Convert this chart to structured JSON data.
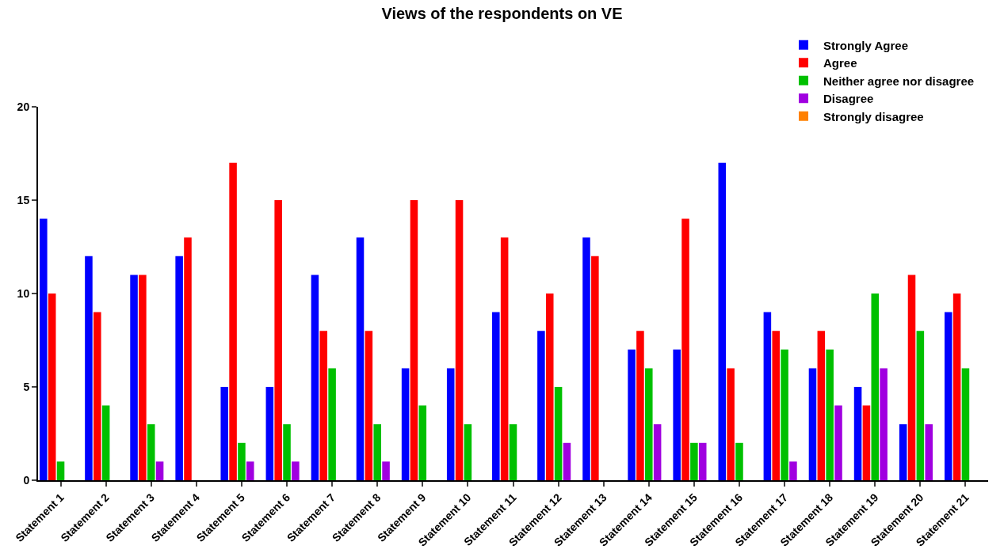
{
  "chart_data": {
    "type": "bar",
    "title": "Views of the respondents on VE",
    "categories": [
      "Statement 1",
      "Statement 2",
      "Statement 3",
      "Statement 4",
      "Statement 5",
      "Statement 6",
      "Statement 7",
      "Statement 8",
      "Statement 9",
      "Statement 10",
      "Statement 11",
      "Statement 12",
      "Statement 13",
      "Statement 14",
      "Statement 15",
      "Statement 16",
      "Statement 17",
      "Statement 18",
      "Statement 19",
      "Statement 20",
      "Statement 21"
    ],
    "series": [
      {
        "name": "Strongly Agree",
        "color": "#0000ff",
        "values": [
          14,
          12,
          11,
          12,
          5,
          5,
          11,
          13,
          6,
          6,
          9,
          8,
          13,
          7,
          7,
          17,
          9,
          6,
          5,
          3,
          9
        ]
      },
      {
        "name": "Agree",
        "color": "#ff0000",
        "values": [
          10,
          9,
          11,
          13,
          17,
          15,
          8,
          8,
          15,
          15,
          13,
          10,
          12,
          8,
          14,
          6,
          8,
          8,
          4,
          11,
          10
        ]
      },
      {
        "name": "Neither agree nor disagree",
        "color": "#00c000",
        "values": [
          1,
          4,
          3,
          0,
          2,
          3,
          6,
          3,
          4,
          3,
          3,
          5,
          0,
          6,
          2,
          2,
          7,
          7,
          10,
          8,
          6
        ]
      },
      {
        "name": "Disagree",
        "color": "#a000e0",
        "values": [
          0,
          0,
          1,
          0,
          1,
          1,
          0,
          1,
          0,
          0,
          0,
          2,
          0,
          3,
          2,
          0,
          1,
          4,
          6,
          3,
          0
        ]
      },
      {
        "name": "Strongly disagree",
        "color": "#ff8000",
        "values": [
          0,
          0,
          0,
          0,
          0,
          0,
          0,
          0,
          0,
          0,
          0,
          0,
          0,
          0,
          0,
          0,
          0,
          0,
          0,
          0,
          0
        ]
      }
    ],
    "ylim": [
      0,
      20
    ],
    "yticks": [
      0,
      5,
      10,
      15,
      20
    ],
    "grid": false,
    "legend": "top right"
  }
}
